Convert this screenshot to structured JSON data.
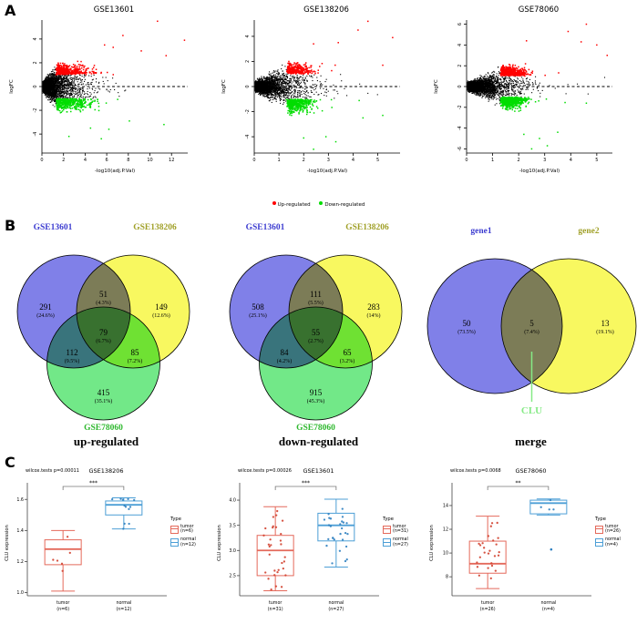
{
  "figure": {
    "panels": [
      "A",
      "B",
      "C"
    ]
  },
  "colors": {
    "up_red": "#ff0000",
    "down_green": "#00dd00",
    "venn_blue": "#8080e8",
    "venn_yellow": "#f8f860",
    "venn_green": "#72e888",
    "label_blue": "#3c3cd0",
    "label_olive": "#a0a028",
    "label_green": "#2eb82e",
    "clu_green": "#86ea86",
    "box_tumor": "#e4695b",
    "box_tumor_point": "#d2402e",
    "box_normal": "#4d9fd6",
    "box_normal_point": "#2d7fc0"
  },
  "chart_data": {
    "volcano": {
      "type": "scatter",
      "xlabel": "-log10(adj.P.Val)",
      "ylabel": "logFC",
      "legend": [
        {
          "label": "Up-regulated",
          "color_key": "up_red"
        },
        {
          "label": "Down-regulated",
          "color_key": "down_green"
        }
      ],
      "plots": [
        {
          "title": "GSE13601",
          "xlim": [
            0,
            13.5
          ],
          "xticks": [
            0,
            2,
            4,
            6,
            8,
            10,
            12
          ],
          "ylim": [
            -5.6,
            5.6
          ],
          "yticks": [
            -4,
            -2,
            0,
            2,
            4
          ],
          "sig_x": 1.3,
          "fc": 1,
          "n_black": 3400,
          "n_up": 330,
          "n_dn": 370,
          "x_scale": 2.4,
          "spread": 3.0,
          "seed": 7,
          "accent_up": [
            [
              10.7,
              5.5
            ],
            [
              13.2,
              3.9
            ],
            [
              7.5,
              4.3
            ],
            [
              5.8,
              3.5
            ],
            [
              9.2,
              3.0
            ],
            [
              11.5,
              2.6
            ],
            [
              6.6,
              3.3
            ]
          ],
          "accent_dn": [
            [
              4.5,
              -3.5
            ],
            [
              6.2,
              -3.6
            ],
            [
              11.3,
              -3.2
            ],
            [
              2.5,
              -4.2
            ],
            [
              5.5,
              -4.4
            ],
            [
              8.1,
              -2.9
            ]
          ]
        },
        {
          "title": "GSE138206",
          "xlim": [
            0,
            5.9
          ],
          "xticks": [
            0,
            1,
            2,
            3,
            4,
            5
          ],
          "ylim": [
            -5.3,
            5.3
          ],
          "yticks": [
            -4,
            -2,
            0,
            2,
            4
          ],
          "sig_x": 1.3,
          "fc": 1,
          "n_black": 3200,
          "n_up": 270,
          "n_dn": 430,
          "x_scale": 1.35,
          "spread": 1.0,
          "seed": 11,
          "accent_up": [
            [
              4.6,
              5.2
            ],
            [
              5.6,
              3.9
            ],
            [
              4.2,
              4.5
            ],
            [
              3.4,
              3.5
            ],
            [
              5.2,
              1.7
            ],
            [
              2.4,
              3.4
            ]
          ],
          "accent_dn": [
            [
              2.4,
              -5.0
            ],
            [
              2.0,
              -4.1
            ],
            [
              3.3,
              -4.4
            ],
            [
              5.2,
              -2.3
            ],
            [
              4.4,
              -2.5
            ],
            [
              2.9,
              -4.0
            ]
          ]
        },
        {
          "title": "GSE78060",
          "xlim": [
            0,
            5.6
          ],
          "xticks": [
            0,
            1,
            2,
            3,
            4,
            5
          ],
          "ylim": [
            -6.4,
            6.4
          ],
          "yticks": [
            -6,
            -4,
            -2,
            0,
            2,
            4,
            6
          ],
          "sig_x": 1.3,
          "fc": 1,
          "n_black": 3800,
          "n_up": 550,
          "n_dn": 650,
          "x_scale": 1.25,
          "spread": 0.85,
          "seed": 13,
          "accent_up": [
            [
              4.6,
              6.0
            ],
            [
              3.9,
              5.3
            ],
            [
              5.4,
              3.0
            ],
            [
              4.4,
              4.3
            ],
            [
              2.3,
              4.4
            ],
            [
              5.0,
              4.0
            ]
          ],
          "accent_dn": [
            [
              2.5,
              -6.0
            ],
            [
              3.1,
              -5.7
            ],
            [
              2.2,
              -4.6
            ],
            [
              3.5,
              -4.4
            ],
            [
              4.6,
              -1.6
            ],
            [
              2.8,
              -5.0
            ]
          ]
        }
      ]
    },
    "venn": {
      "type": "venn",
      "diagrams": [
        {
          "caption": "up-regulated",
          "sets": [
            {
              "label": "GSE13601",
              "fill": "venn_blue",
              "label_color": "label_blue"
            },
            {
              "label": "GSE138206",
              "fill": "venn_yellow",
              "label_color": "label_olive"
            },
            {
              "label": "GSE78060",
              "fill": "venn_green",
              "label_color": "label_green"
            }
          ],
          "regions": {
            "s1": [
              "291",
              "(24.6%)"
            ],
            "s12": [
              "51",
              "(4.3%)"
            ],
            "s2": [
              "149",
              "(12.6%)"
            ],
            "s13": [
              "112",
              "(9.5%)"
            ],
            "s123": [
              "79",
              "(6.7%)"
            ],
            "s23": [
              "85",
              "(7.2%)"
            ],
            "s3": [
              "415",
              "(35.1%)"
            ]
          }
        },
        {
          "caption": "down-regulated",
          "sets": [
            {
              "label": "GSE13601",
              "fill": "venn_blue",
              "label_color": "label_blue"
            },
            {
              "label": "GSE138206",
              "fill": "venn_yellow",
              "label_color": "label_olive"
            },
            {
              "label": "GSE78060",
              "fill": "venn_green",
              "label_color": "label_green"
            }
          ],
          "regions": {
            "s1": [
              "508",
              "(25.1%)"
            ],
            "s12": [
              "111",
              "(5.5%)"
            ],
            "s2": [
              "283",
              "(14%)"
            ],
            "s13": [
              "84",
              "(4.2%)"
            ],
            "s123": [
              "55",
              "(2.7%)"
            ],
            "s23": [
              "65",
              "(3.2%)"
            ],
            "s3": [
              "915",
              "(45.3%)"
            ]
          }
        },
        {
          "caption": "merge",
          "sets": [
            {
              "label": "gene1",
              "fill": "venn_blue",
              "label_color": "label_blue"
            },
            {
              "label": "gene2",
              "fill": "venn_yellow",
              "label_color": "label_olive"
            }
          ],
          "regions": {
            "s1": [
              "50",
              "(73.5%)"
            ],
            "s12": [
              "5",
              "(7.4%)"
            ],
            "s2": [
              "13",
              "(19.1%)"
            ]
          },
          "annotation": "CLU"
        }
      ]
    },
    "boxplots": {
      "type": "box",
      "ylabel": "CLU expression",
      "legend_title": "Type",
      "plots": [
        {
          "title": "GSE138206",
          "p_text": "wilcox.tests p=0.00011",
          "sig": "***",
          "ylim": [
            0.98,
            1.66
          ],
          "yticks": [
            1.0,
            1.2,
            1.4,
            1.6
          ],
          "ytick_labels": [
            "1.0",
            "1.2",
            "1.4",
            "1.6"
          ],
          "seed": 3,
          "groups": [
            {
              "name": "tumor",
              "n_label": "(n=6)",
              "n": 6,
              "stats": {
                "lo": 1.01,
                "q1": 1.18,
                "med": 1.28,
                "q3": 1.34,
                "hi": 1.4
              },
              "outliers": []
            },
            {
              "name": "normal",
              "n_label": "(n=12)",
              "n": 12,
              "stats": {
                "lo": 1.41,
                "q1": 1.5,
                "med": 1.565,
                "q3": 1.59,
                "hi": 1.61
              },
              "outliers": []
            }
          ]
        },
        {
          "title": "GSE13601",
          "p_text": "wilcox.tests p=0.00026",
          "sig": "***",
          "ylim": [
            2.1,
            4.2
          ],
          "yticks": [
            2.5,
            3.0,
            3.5,
            4.0
          ],
          "ytick_labels": [
            "2.5",
            "3.0",
            "3.5",
            "4.0"
          ],
          "seed": 5,
          "groups": [
            {
              "name": "tumor",
              "n_label": "(n=31)",
              "n": 31,
              "stats": {
                "lo": 2.2,
                "q1": 2.5,
                "med": 3.0,
                "q3": 3.3,
                "hi": 3.87
              },
              "outliers": []
            },
            {
              "name": "normal",
              "n_label": "(n=27)",
              "n": 27,
              "stats": {
                "lo": 2.67,
                "q1": 3.19,
                "med": 3.5,
                "q3": 3.74,
                "hi": 4.02
              },
              "outliers": []
            }
          ]
        },
        {
          "title": "GSE78060",
          "p_text": "wilcox.tests p=0.0068",
          "sig": "**",
          "ylim": [
            6.4,
            15.3
          ],
          "yticks": [
            8,
            10,
            12,
            14
          ],
          "ytick_labels": [
            "8",
            "10",
            "12",
            "14"
          ],
          "seed": 9,
          "groups": [
            {
              "name": "tumor",
              "n_label": "(n=26)",
              "n": 26,
              "stats": {
                "lo": 7.0,
                "q1": 8.3,
                "med": 9.1,
                "q3": 11.0,
                "hi": 13.1
              },
              "outliers": []
            },
            {
              "name": "normal",
              "n_label": "(n=4)",
              "n": 4,
              "stats": {
                "lo": 13.2,
                "q1": 13.3,
                "med": 14.2,
                "q3": 14.45,
                "hi": 14.55
              },
              "outliers": [
                10.3
              ]
            }
          ]
        }
      ]
    }
  }
}
